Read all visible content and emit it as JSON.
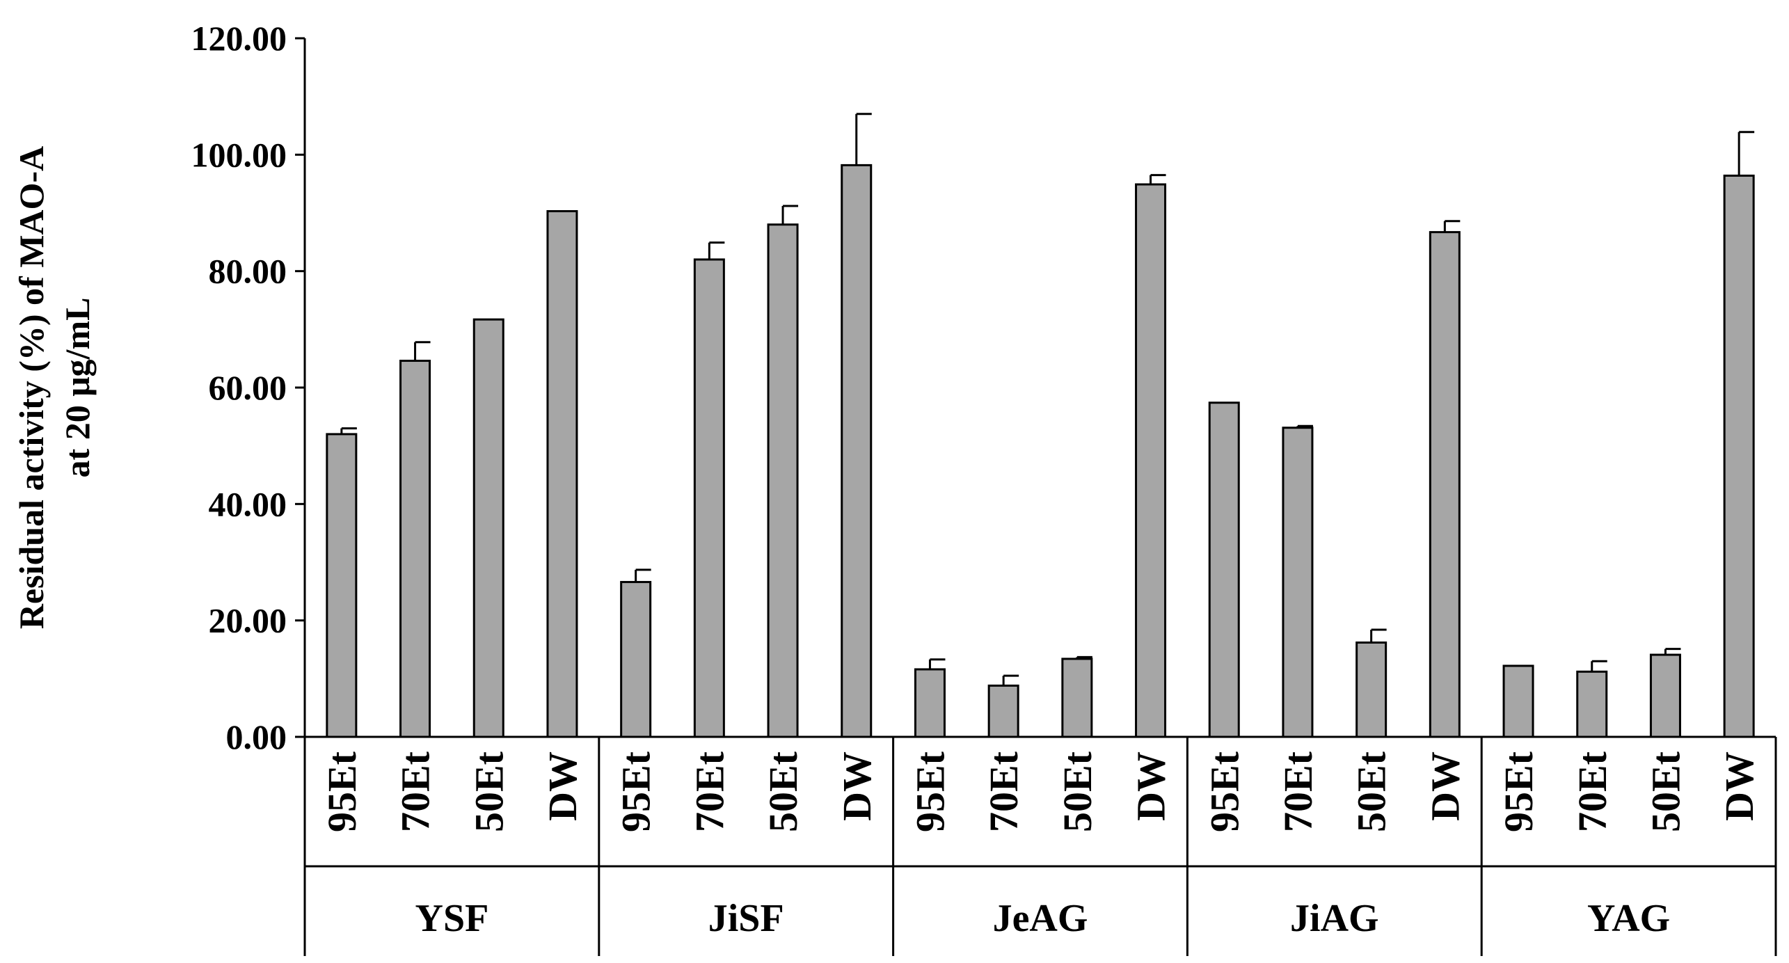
{
  "chart_data": {
    "type": "bar",
    "ylabel_lines": [
      "Residual activity (%) of MAO-A",
      "at 20 μg/mL"
    ],
    "ylim": [
      0,
      120
    ],
    "yticks": [
      0,
      20,
      40,
      60,
      80,
      100,
      120
    ],
    "ytick_labels": [
      "0.00",
      "20.00",
      "40.00",
      "60.00",
      "80.00",
      "100.00",
      "120.00"
    ],
    "grid": false,
    "bar_color": "#a6a6a6",
    "groups": [
      {
        "name": "YSF",
        "categories": [
          "95Et",
          "70Et",
          "50Et",
          "DW"
        ],
        "values": [
          52.0,
          64.6,
          71.7,
          90.3
        ],
        "errors": [
          1.0,
          3.2,
          0.0,
          0.0
        ]
      },
      {
        "name": "JiSF",
        "categories": [
          "95Et",
          "70Et",
          "50Et",
          "DW"
        ],
        "values": [
          26.6,
          82.0,
          88.0,
          98.2
        ],
        "errors": [
          2.1,
          2.9,
          3.2,
          8.8
        ]
      },
      {
        "name": "JeAG",
        "categories": [
          "95Et",
          "70Et",
          "50Et",
          "DW"
        ],
        "values": [
          11.6,
          8.8,
          13.4,
          94.9
        ],
        "errors": [
          1.7,
          1.7,
          0.3,
          1.6
        ]
      },
      {
        "name": "JiAG",
        "categories": [
          "95Et",
          "70Et",
          "50Et",
          "DW"
        ],
        "values": [
          57.4,
          53.1,
          16.2,
          86.7
        ],
        "errors": [
          0.0,
          0.3,
          2.2,
          1.9
        ]
      },
      {
        "name": "YAG",
        "categories": [
          "95Et",
          "70Et",
          "50Et",
          "DW"
        ],
        "values": [
          12.2,
          11.2,
          14.1,
          96.4
        ],
        "errors": [
          0.0,
          1.8,
          1.0,
          7.5
        ]
      }
    ]
  }
}
